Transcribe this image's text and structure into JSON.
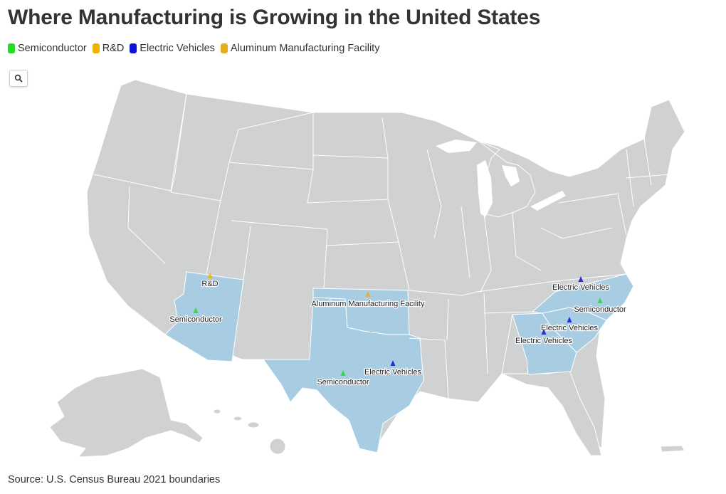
{
  "title": "Where Manufacturing is Growing in the United States",
  "legend": [
    {
      "label": "Semiconductor",
      "color": "#22dd22"
    },
    {
      "label": "R&D",
      "color": "#f0b400"
    },
    {
      "label": "Electric Vehicles",
      "color": "#1010dd"
    },
    {
      "label": "Aluminum Manufacturing Facility",
      "color": "#e0b020"
    }
  ],
  "search_icon": "search-icon",
  "colors": {
    "highlight_state": "#a8cde2",
    "other_state": "#cfd1d2"
  },
  "highlighted_states": [
    "Arizona",
    "Texas",
    "Oklahoma",
    "Georgia",
    "South Carolina",
    "North Carolina"
  ],
  "markers": [
    {
      "label": "R&D",
      "category": "R&D",
      "state": "Arizona"
    },
    {
      "label": "Semiconductor",
      "category": "Semiconductor",
      "state": "Arizona"
    },
    {
      "label": "Aluminum Manufacturing Facility",
      "category": "Aluminum Manufacturing Facility",
      "state": "Oklahoma"
    },
    {
      "label": "Electric Vehicles",
      "category": "Electric Vehicles",
      "state": "Texas"
    },
    {
      "label": "Semiconductor",
      "category": "Semiconductor",
      "state": "Texas"
    },
    {
      "label": "Electric Vehicles",
      "category": "Electric Vehicles",
      "state": "North Carolina"
    },
    {
      "label": "Semiconductor",
      "category": "Semiconductor",
      "state": "North Carolina"
    },
    {
      "label": "Electric Vehicles",
      "category": "Electric Vehicles",
      "state": "South Carolina"
    },
    {
      "label": "Electric Vehicles",
      "category": "Electric Vehicles",
      "state": "Georgia"
    }
  ],
  "source": "Source: U.S. Census Bureau 2021 boundaries"
}
